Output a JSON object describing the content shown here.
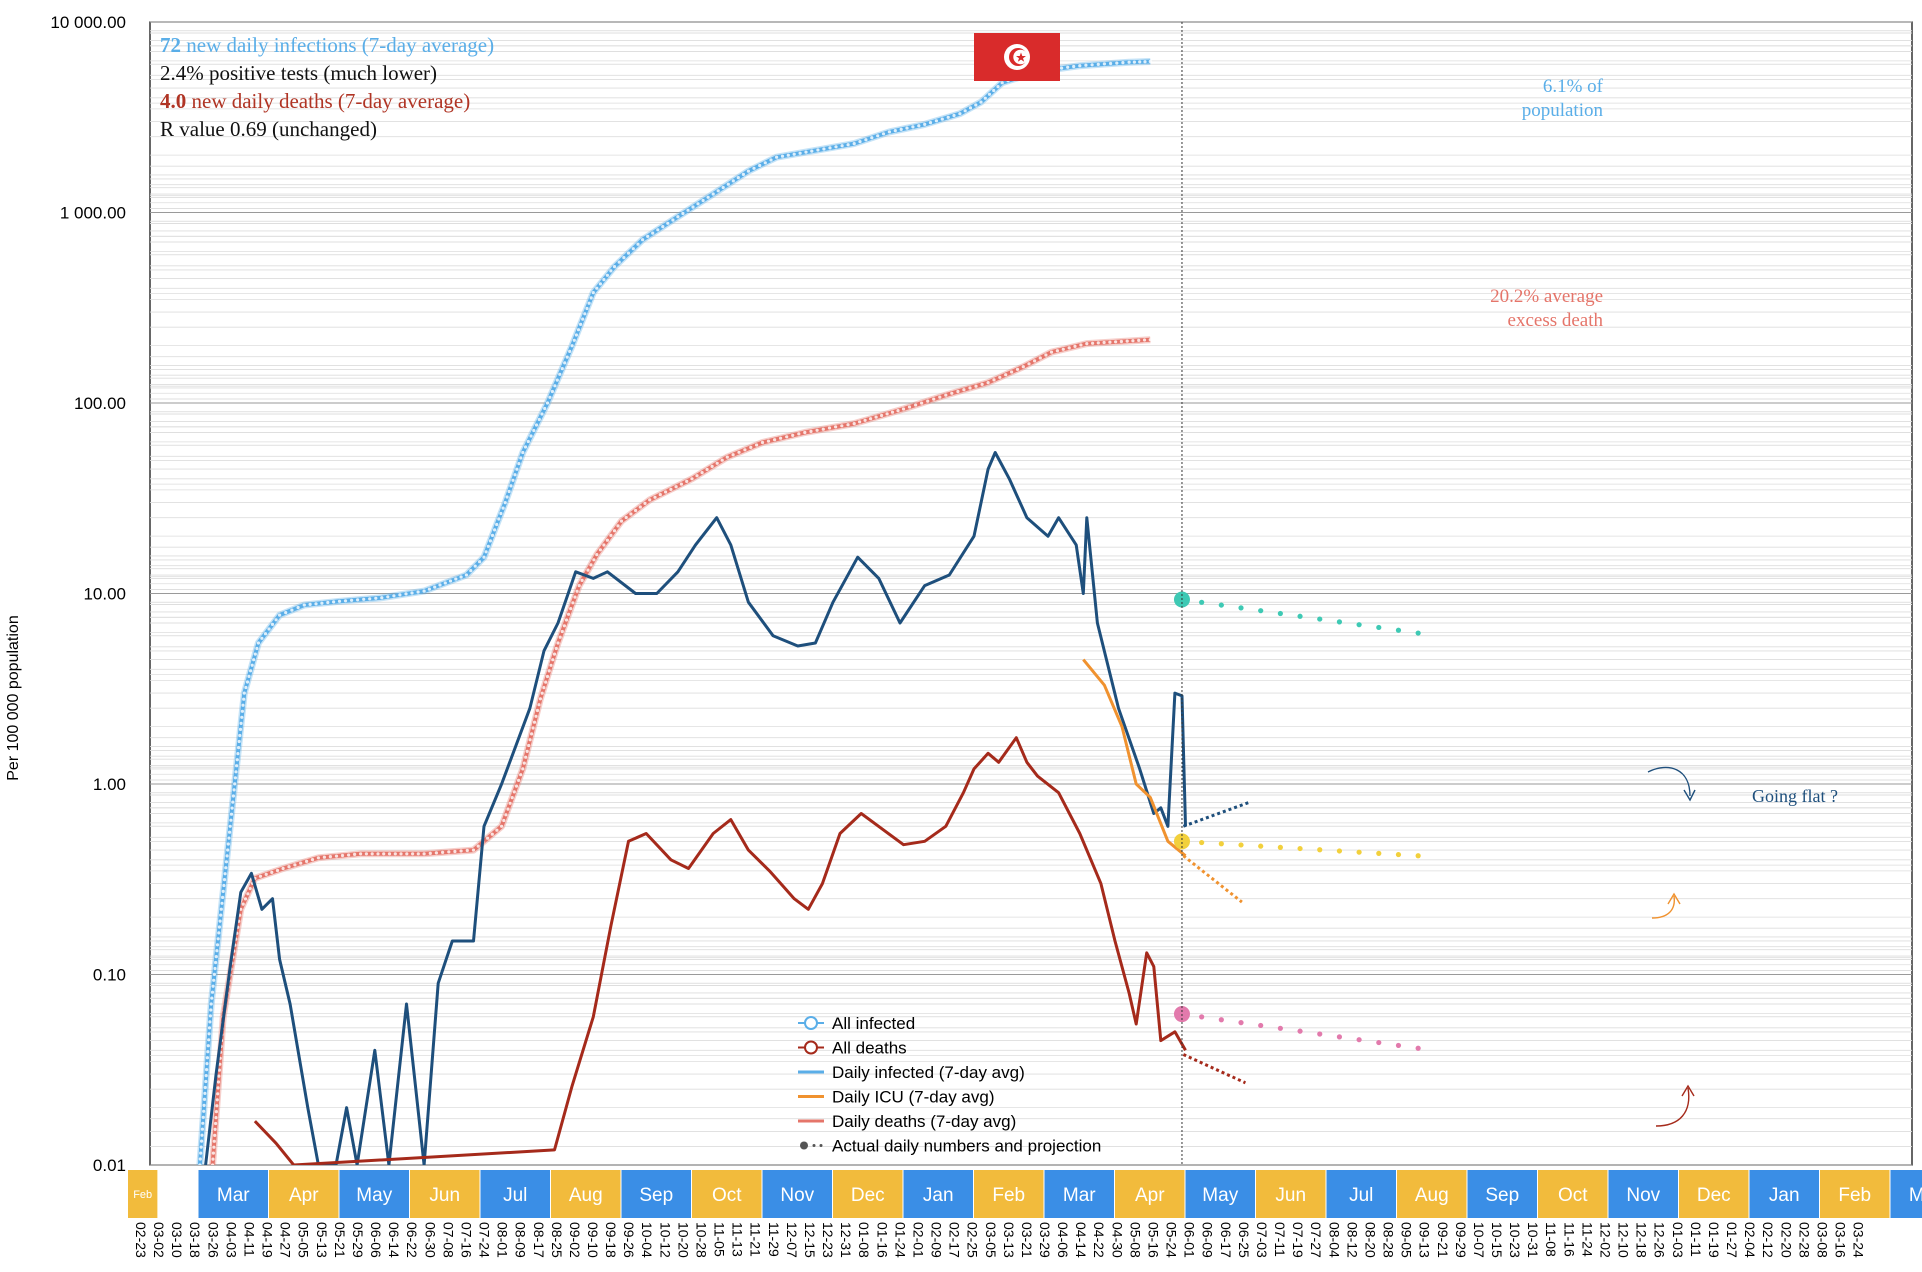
{
  "chart_data": {
    "type": "line",
    "country": "Tunisia",
    "y_scale": "log",
    "ylim": [
      0.01,
      10000
    ],
    "ylabel": "Per 100 000 population",
    "y_ticks": [
      "10 000.00",
      "1 000.00",
      "100.00",
      "10.00",
      "1.00",
      "0.10",
      "0.01"
    ],
    "y_tick_values": [
      10000,
      1000,
      100,
      10,
      1,
      0.1,
      0.01
    ],
    "grid": true,
    "months": [
      {
        "label": "Feb",
        "color": "#f2bb3c"
      },
      {
        "label": "Mar",
        "color": "#3a8ee6"
      },
      {
        "label": "Apr",
        "color": "#f2bb3c"
      },
      {
        "label": "May",
        "color": "#3a8ee6"
      },
      {
        "label": "Jun",
        "color": "#f2bb3c"
      },
      {
        "label": "Jul",
        "color": "#3a8ee6"
      },
      {
        "label": "Aug",
        "color": "#f2bb3c"
      },
      {
        "label": "Sep",
        "color": "#3a8ee6"
      },
      {
        "label": "Oct",
        "color": "#f2bb3c"
      },
      {
        "label": "Nov",
        "color": "#3a8ee6"
      },
      {
        "label": "Dec",
        "color": "#f2bb3c"
      },
      {
        "label": "Jan",
        "color": "#3a8ee6"
      },
      {
        "label": "Feb",
        "color": "#f2bb3c"
      },
      {
        "label": "Mar",
        "color": "#3a8ee6"
      },
      {
        "label": "Apr",
        "color": "#f2bb3c"
      },
      {
        "label": "May",
        "color": "#3a8ee6"
      },
      {
        "label": "Jun",
        "color": "#f2bb3c"
      },
      {
        "label": "Jul",
        "color": "#3a8ee6"
      },
      {
        "label": "Aug",
        "color": "#f2bb3c"
      },
      {
        "label": "Sep",
        "color": "#3a8ee6"
      },
      {
        "label": "Oct",
        "color": "#f2bb3c"
      },
      {
        "label": "Nov",
        "color": "#3a8ee6"
      },
      {
        "label": "Dec",
        "color": "#f2bb3c"
      },
      {
        "label": "Jan",
        "color": "#3a8ee6"
      },
      {
        "label": "Feb",
        "color": "#f2bb3c"
      },
      {
        "label": "Mar",
        "color": "#3a8ee6"
      }
    ],
    "x_tick_labels": [
      "02-23",
      "03-02",
      "03-10",
      "03-18",
      "03-26",
      "04-03",
      "04-11",
      "04-19",
      "04-27",
      "05-05",
      "05-13",
      "05-21",
      "05-29",
      "06-06",
      "06-14",
      "06-22",
      "06-30",
      "07-08",
      "07-16",
      "07-24",
      "08-01",
      "08-09",
      "08-17",
      "08-25",
      "09-02",
      "09-10",
      "09-18",
      "09-26",
      "10-04",
      "10-12",
      "10-20",
      "10-28",
      "11-05",
      "11-13",
      "11-21",
      "11-29",
      "12-07",
      "12-15",
      "12-23",
      "12-31",
      "01-08",
      "01-16",
      "01-24",
      "02-01",
      "02-09",
      "02-17",
      "02-25",
      "03-05",
      "03-13",
      "03-21",
      "03-29",
      "04-06",
      "04-14",
      "04-22",
      "04-30",
      "05-08",
      "05-16",
      "05-24",
      "06-01",
      "06-09",
      "06-17",
      "06-25",
      "07-03",
      "07-11",
      "07-19",
      "07-27",
      "08-04",
      "08-12",
      "08-20",
      "08-28",
      "09-05",
      "09-13",
      "09-21",
      "09-29",
      "10-07",
      "10-15",
      "10-23",
      "10-31",
      "11-08",
      "11-16",
      "11-24",
      "12-02",
      "12-10",
      "12-18",
      "12-26",
      "01-03",
      "01-11",
      "01-19",
      "01-27",
      "02-04",
      "02-12",
      "02-20",
      "02-28",
      "03-08",
      "03-16",
      "03-24"
    ],
    "x_unit": "month index (0 = Feb 2020 band start)",
    "series": [
      {
        "name": "All infected",
        "color": "#5aaee8",
        "style": "circles",
        "points": [
          [
            1.02,
            0.01
          ],
          [
            1.18,
            0.07
          ],
          [
            1.45,
            0.6
          ],
          [
            1.65,
            3
          ],
          [
            1.85,
            5.5
          ],
          [
            2.15,
            7.7
          ],
          [
            2.5,
            8.7
          ],
          [
            3,
            9.1
          ],
          [
            3.6,
            9.5
          ],
          [
            4.2,
            10.3
          ],
          [
            4.8,
            12.5
          ],
          [
            5.05,
            15.5
          ],
          [
            5.35,
            30
          ],
          [
            5.6,
            55
          ],
          [
            5.95,
            100
          ],
          [
            6.3,
            200
          ],
          [
            6.6,
            380
          ],
          [
            6.9,
            520
          ],
          [
            7.3,
            720
          ],
          [
            7.8,
            950
          ],
          [
            8.3,
            1250
          ],
          [
            8.8,
            1650
          ],
          [
            9.2,
            1950
          ],
          [
            9.7,
            2100
          ],
          [
            10.3,
            2300
          ],
          [
            10.8,
            2650
          ],
          [
            11.3,
            2900
          ],
          [
            11.8,
            3300
          ],
          [
            12.1,
            3800
          ],
          [
            12.4,
            4800
          ],
          [
            12.9,
            5500
          ],
          [
            13.5,
            5900
          ],
          [
            14.2,
            6150
          ],
          [
            14.5,
            6200
          ]
        ]
      },
      {
        "name": "All deaths",
        "color": "#e5756a",
        "style": "circles",
        "points": [
          [
            1.2,
            0.01
          ],
          [
            1.35,
            0.06
          ],
          [
            1.6,
            0.22
          ],
          [
            1.8,
            0.32
          ],
          [
            2.2,
            0.36
          ],
          [
            2.7,
            0.41
          ],
          [
            3.3,
            0.43
          ],
          [
            4.2,
            0.43
          ],
          [
            4.9,
            0.45
          ],
          [
            5.3,
            0.6
          ],
          [
            5.6,
            1.2
          ],
          [
            5.85,
            2.8
          ],
          [
            6.1,
            5.5
          ],
          [
            6.4,
            11
          ],
          [
            6.65,
            16
          ],
          [
            7.0,
            24
          ],
          [
            7.4,
            31
          ],
          [
            8.0,
            40
          ],
          [
            8.5,
            52
          ],
          [
            9.0,
            62
          ],
          [
            9.6,
            70
          ],
          [
            10.3,
            78
          ],
          [
            11.0,
            93
          ],
          [
            11.6,
            110
          ],
          [
            12.2,
            128
          ],
          [
            12.7,
            155
          ],
          [
            13.1,
            185
          ],
          [
            13.6,
            205
          ],
          [
            14.5,
            215
          ]
        ]
      },
      {
        "name": "Daily infected (7-day avg)",
        "color": "#1e4f7c",
        "style": "line",
        "points": [
          [
            1.1,
            0.01
          ],
          [
            1.25,
            0.03
          ],
          [
            1.45,
            0.11
          ],
          [
            1.6,
            0.27
          ],
          [
            1.75,
            0.34
          ],
          [
            1.9,
            0.22
          ],
          [
            2.05,
            0.25
          ],
          [
            2.15,
            0.12
          ],
          [
            2.3,
            0.07
          ],
          [
            2.55,
            0.02
          ],
          [
            2.7,
            0.01
          ],
          [
            2.95,
            0.01
          ],
          [
            3.1,
            0.02
          ],
          [
            3.25,
            0.01
          ],
          [
            3.5,
            0.04
          ],
          [
            3.7,
            0.01
          ],
          [
            3.95,
            0.07
          ],
          [
            4.2,
            0.01
          ],
          [
            4.4,
            0.09
          ],
          [
            4.6,
            0.15
          ],
          [
            4.9,
            0.15
          ],
          [
            5.05,
            0.6
          ],
          [
            5.3,
            1.0
          ],
          [
            5.7,
            2.5
          ],
          [
            5.9,
            5
          ],
          [
            6.1,
            7
          ],
          [
            6.35,
            13
          ],
          [
            6.6,
            12
          ],
          [
            6.8,
            13
          ],
          [
            7.2,
            10
          ],
          [
            7.5,
            10
          ],
          [
            7.8,
            13
          ],
          [
            8.05,
            18
          ],
          [
            8.35,
            25
          ],
          [
            8.55,
            18
          ],
          [
            8.8,
            9
          ],
          [
            9.15,
            6
          ],
          [
            9.5,
            5.3
          ],
          [
            9.75,
            5.5
          ],
          [
            10.0,
            9
          ],
          [
            10.35,
            15.5
          ],
          [
            10.65,
            12
          ],
          [
            10.95,
            7
          ],
          [
            11.3,
            11
          ],
          [
            11.65,
            12.5
          ],
          [
            12.0,
            20
          ],
          [
            12.2,
            45
          ],
          [
            12.3,
            55
          ],
          [
            12.5,
            40
          ],
          [
            12.75,
            25
          ],
          [
            13.05,
            20
          ],
          [
            13.2,
            25
          ],
          [
            13.45,
            18
          ],
          [
            13.55,
            10
          ],
          [
            13.6,
            25
          ],
          [
            13.75,
            7
          ],
          [
            14.05,
            2.5
          ],
          [
            14.35,
            1.2
          ],
          [
            14.55,
            0.7
          ],
          [
            14.65,
            0.75
          ],
          [
            14.75,
            0.6
          ],
          [
            14.85,
            3.0
          ],
          [
            14.95,
            2.9
          ],
          [
            15.0,
            0.6
          ]
        ]
      },
      {
        "name": "Daily ICU (7-day avg)",
        "color": "#f0922f",
        "style": "line",
        "points": [
          [
            13.55,
            4.5
          ],
          [
            13.85,
            3.3
          ],
          [
            14.1,
            2.0
          ],
          [
            14.3,
            1.0
          ],
          [
            14.5,
            0.85
          ],
          [
            14.75,
            0.5
          ],
          [
            15.0,
            0.42
          ]
        ]
      },
      {
        "name": "Daily deaths (7-day avg)",
        "color": "#a52a1b",
        "style": "line",
        "points": [
          [
            1.8,
            0.017
          ],
          [
            2.1,
            0.013
          ],
          [
            2.35,
            0.01
          ],
          [
            6.05,
            0.012
          ],
          [
            6.3,
            0.026
          ],
          [
            6.6,
            0.06
          ],
          [
            6.85,
            0.18
          ],
          [
            7.1,
            0.5
          ],
          [
            7.35,
            0.55
          ],
          [
            7.7,
            0.4
          ],
          [
            7.95,
            0.36
          ],
          [
            8.3,
            0.55
          ],
          [
            8.55,
            0.65
          ],
          [
            8.8,
            0.45
          ],
          [
            9.1,
            0.35
          ],
          [
            9.45,
            0.25
          ],
          [
            9.65,
            0.22
          ],
          [
            9.85,
            0.3
          ],
          [
            10.1,
            0.55
          ],
          [
            10.4,
            0.7
          ],
          [
            10.7,
            0.58
          ],
          [
            11.0,
            0.48
          ],
          [
            11.3,
            0.5
          ],
          [
            11.6,
            0.6
          ],
          [
            11.85,
            0.9
          ],
          [
            12.0,
            1.2
          ],
          [
            12.2,
            1.45
          ],
          [
            12.35,
            1.3
          ],
          [
            12.6,
            1.75
          ],
          [
            12.75,
            1.3
          ],
          [
            12.9,
            1.1
          ],
          [
            13.2,
            0.9
          ],
          [
            13.5,
            0.55
          ],
          [
            13.8,
            0.3
          ],
          [
            14.0,
            0.15
          ],
          [
            14.2,
            0.08
          ],
          [
            14.3,
            0.055
          ],
          [
            14.45,
            0.13
          ],
          [
            14.55,
            0.11
          ],
          [
            14.65,
            0.045
          ],
          [
            14.85,
            0.05
          ],
          [
            15.0,
            0.04
          ]
        ]
      }
    ],
    "projections": [
      {
        "name": "infected projection",
        "color": "#3ec9b4",
        "start": [
          14.95,
          9.3
        ],
        "end": [
          18.3,
          6.2
        ]
      },
      {
        "name": "ICU projection",
        "color": "#f2d03c",
        "start": [
          14.95,
          0.5
        ],
        "end": [
          18.3,
          0.42
        ]
      },
      {
        "name": "deaths projection",
        "color": "#e27aac",
        "start": [
          14.95,
          0.062
        ],
        "end": [
          18.3,
          0.041
        ]
      }
    ],
    "today_x": 14.95,
    "title_lines": [
      {
        "value": "72",
        "text": "new daily infections (7-day average)",
        "color": "#5aaee8"
      },
      {
        "value": "2.4%",
        "text": "positive tests (much lower)",
        "color": "#111111"
      },
      {
        "value": "4.0",
        "text": "new daily deaths (7-day average)",
        "color": "#b03424"
      },
      {
        "value": "R value 0.69",
        "text": "(unchanged)",
        "color": "#111111"
      }
    ],
    "annotations": {
      "infected_pct": [
        "6.1% of",
        "population"
      ],
      "excess_death": [
        "20.2% average",
        "excess death"
      ],
      "going_flat": "Going flat ?"
    },
    "legend": [
      {
        "label": "All infected",
        "color": "#5aaee8",
        "kind": "circle-line"
      },
      {
        "label": "All deaths",
        "color": "#a52a1b",
        "kind": "circle-line"
      },
      {
        "label": "Daily infected (7-day avg)",
        "color": "#5aaee8",
        "kind": "line"
      },
      {
        "label": "Daily ICU (7-day avg)",
        "color": "#f0922f",
        "kind": "line"
      },
      {
        "label": "Daily deaths (7-day avg)",
        "color": "#e5756a",
        "kind": "line"
      },
      {
        "label": "Actual daily numbers and projection",
        "color": "#555555",
        "kind": "dots"
      }
    ]
  }
}
